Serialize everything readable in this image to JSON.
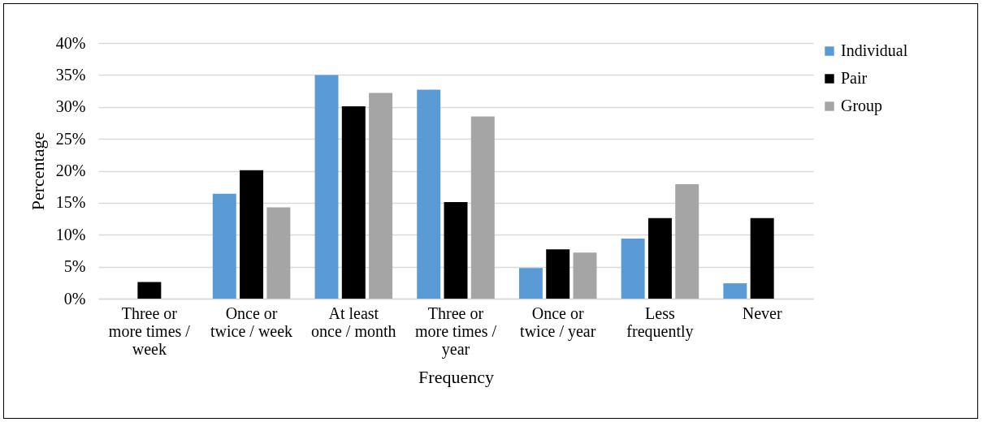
{
  "chart_data": {
    "type": "bar",
    "xlabel": "Frequency",
    "ylabel": "Percentage",
    "categories": [
      "Three or more times / week",
      "Once or twice / week",
      "At least once / month",
      "Three or more times / year",
      "Once or twice / year",
      "Less frequently",
      "Never"
    ],
    "series": [
      {
        "name": "Individual",
        "color": "#5b9bd5",
        "values": [
          0,
          16.4,
          35.0,
          32.7,
          4.8,
          9.4,
          2.4
        ]
      },
      {
        "name": "Pair",
        "color": "#000000",
        "values": [
          2.6,
          20.1,
          30.1,
          15.1,
          7.7,
          12.6,
          12.6
        ]
      },
      {
        "name": "Group",
        "color": "#a5a5a5",
        "values": [
          0,
          14.3,
          32.2,
          28.5,
          7.2,
          17.9,
          0
        ]
      }
    ],
    "ylim": [
      0,
      40
    ],
    "yticks": [
      {
        "value": 0,
        "label": "0%"
      },
      {
        "value": 5,
        "label": "5%"
      },
      {
        "value": 10,
        "label": "10%"
      },
      {
        "value": 15,
        "label": "15%"
      },
      {
        "value": 20,
        "label": "20%"
      },
      {
        "value": 25,
        "label": "25%"
      },
      {
        "value": 30,
        "label": "30%"
      },
      {
        "value": 35,
        "label": "35%"
      },
      {
        "value": 40,
        "label": "40%"
      }
    ],
    "grid": "y",
    "legend": "right"
  }
}
